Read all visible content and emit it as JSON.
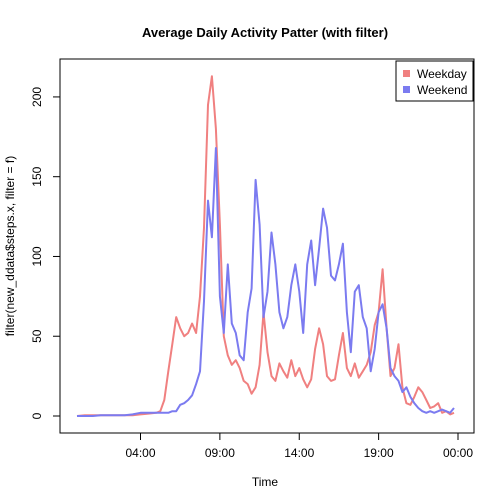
{
  "chart_data": {
    "type": "line",
    "title": "Average Daily Activity Patter (with filter)",
    "xlabel": "Time",
    "ylabel": "filter(new_ddata$steps.x, filter = f)",
    "x_unit": "hours",
    "xlim": [
      0,
      24
    ],
    "ylim": [
      0,
      215
    ],
    "x_ticks": [
      4,
      9,
      14,
      19,
      24
    ],
    "x_tick_labels": [
      "04:00",
      "09:00",
      "14:00",
      "19:00",
      "00:00"
    ],
    "y_ticks": [
      0,
      50,
      100,
      150,
      200
    ],
    "y_tick_labels": [
      "0",
      "50",
      "100",
      "150",
      "200"
    ],
    "grid": false,
    "legend": {
      "position": "top-right"
    },
    "x": [
      0,
      0.5,
      1,
      1.5,
      2,
      2.5,
      3,
      3.5,
      4,
      4.5,
      5,
      5.25,
      5.5,
      5.75,
      6,
      6.25,
      6.5,
      6.75,
      7,
      7.25,
      7.5,
      7.75,
      8,
      8.25,
      8.5,
      8.75,
      9,
      9.25,
      9.5,
      9.75,
      10,
      10.25,
      10.5,
      10.75,
      11,
      11.25,
      11.5,
      11.75,
      12,
      12.25,
      12.5,
      12.75,
      13,
      13.25,
      13.5,
      13.75,
      14,
      14.25,
      14.5,
      14.75,
      15,
      15.25,
      15.5,
      15.75,
      16,
      16.25,
      16.5,
      16.75,
      17,
      17.25,
      17.5,
      17.75,
      18,
      18.25,
      18.5,
      18.75,
      19,
      19.25,
      19.5,
      19.75,
      20,
      20.25,
      20.5,
      20.75,
      21,
      21.25,
      21.5,
      21.75,
      22,
      22.25,
      22.5,
      22.75,
      23,
      23.25,
      23.5,
      23.75
    ],
    "series": [
      {
        "name": "Weekday",
        "color": "#f08080",
        "values": [
          0,
          0.5,
          0.5,
          0.5,
          0.5,
          0.5,
          0.5,
          0.5,
          1,
          1.5,
          2,
          3,
          10,
          28,
          45,
          62,
          55,
          50,
          52,
          58,
          52,
          75,
          118,
          195,
          213,
          180,
          120,
          50,
          38,
          32,
          35,
          30,
          22,
          20,
          14,
          18,
          32,
          65,
          40,
          25,
          22,
          33,
          28,
          24,
          35,
          25,
          30,
          23,
          18,
          23,
          42,
          55,
          45,
          25,
          22,
          23,
          38,
          52,
          30,
          25,
          33,
          24,
          28,
          32,
          40,
          57,
          65,
          92,
          55,
          25,
          30,
          45,
          18,
          8,
          7,
          12,
          18,
          15,
          10,
          5,
          6,
          8,
          2,
          3,
          1,
          2
        ]
      },
      {
        "name": "Weekend",
        "color": "#7b7bf0",
        "values": [
          0,
          0,
          0,
          0.5,
          0.5,
          0.5,
          0.5,
          1,
          2,
          2,
          2,
          2,
          2,
          2,
          3,
          3,
          7,
          8,
          10,
          13,
          20,
          28,
          72,
          135,
          112,
          168,
          75,
          52,
          95,
          58,
          52,
          38,
          35,
          65,
          80,
          148,
          120,
          62,
          78,
          115,
          95,
          65,
          55,
          62,
          82,
          95,
          78,
          52,
          95,
          110,
          82,
          105,
          130,
          118,
          88,
          85,
          95,
          108,
          65,
          40,
          78,
          82,
          62,
          55,
          28,
          42,
          65,
          70,
          55,
          30,
          25,
          22,
          15,
          18,
          12,
          8,
          5,
          3,
          2,
          3,
          2,
          3,
          4,
          3,
          2,
          5
        ]
      }
    ]
  }
}
